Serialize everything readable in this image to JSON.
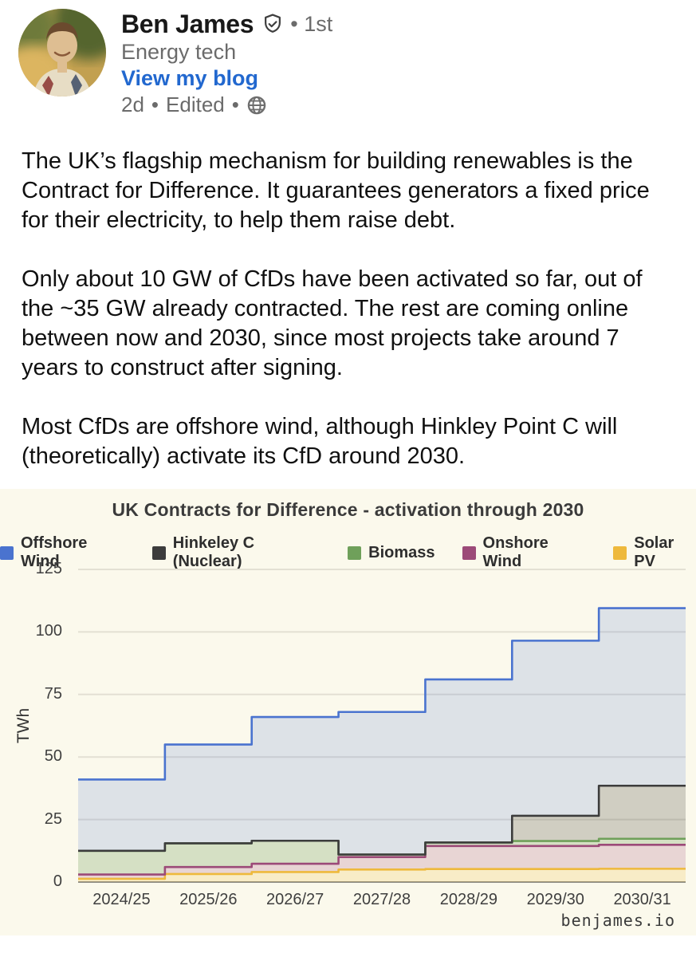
{
  "post": {
    "author": {
      "name": "Ben James",
      "badge_icon": "shield-check",
      "connection_degree": "1st",
      "headline": "Energy tech",
      "link_label": "View my blog",
      "time": "2d",
      "edited": "Edited",
      "separator": "•"
    },
    "paragraphs": [
      "The UK’s flagship mechanism for building renewables is the Contract for Difference. It guarantees generators a fixed price for their electricity, to help them raise debt.",
      "Only about 10 GW of CfDs have been activated so far, out of the ~35 GW already contracted. The rest are coming online between now and 2030, since most projects take around 7 years to construct after signing.",
      "Most CfDs are offshore wind, although Hinkley Point C will (theoretically) activate its CfD around 2030."
    ]
  },
  "chart_data": {
    "type": "area",
    "subtype": "stacked-step-area",
    "title": "UK Contracts for Difference - activation through 2030",
    "ylabel": "TWh",
    "ylim": [
      0,
      125
    ],
    "yticks": [
      0,
      25,
      50,
      75,
      100,
      125
    ],
    "grid": true,
    "legend_position": "top",
    "categories": [
      "2024/25",
      "2025/26",
      "2026/27",
      "2027/28",
      "2028/29",
      "2029/30",
      "2030/31"
    ],
    "series": [
      {
        "name": "Offshore Wind",
        "color": "#4a73cf",
        "fill": "rgba(77,114,205,0.17)",
        "values": [
          28.5,
          39.5,
          49.5,
          57.0,
          65.2,
          70.0,
          71.0
        ]
      },
      {
        "name": "Hinkeley C (Nuclear)",
        "color": "#3c3c3c",
        "fill": "rgba(70,70,62,0.24)",
        "values": [
          0,
          0,
          0,
          0,
          0,
          10.1,
          21.2
        ]
      },
      {
        "name": "Biomass",
        "color": "#6fa05a",
        "fill": "rgba(110,159,88,0.27)",
        "values": [
          9.5,
          9.5,
          9.2,
          1.0,
          1.4,
          2.0,
          2.4
        ]
      },
      {
        "name": "Onshore Wind",
        "color": "#9c4a78",
        "fill": "rgba(158,72,120,0.20)",
        "values": [
          1.7,
          2.8,
          3.3,
          5.0,
          9.2,
          9.2,
          9.6
        ]
      },
      {
        "name": "Solar PV",
        "color": "#eeb93c",
        "fill": "rgba(240,186,55,0.20)",
        "values": [
          1.3,
          3.2,
          4.0,
          5.0,
          5.2,
          5.2,
          5.3
        ]
      }
    ],
    "stack_order": [
      "Solar PV",
      "Onshore Wind",
      "Biomass",
      "Hinkeley C (Nuclear)",
      "Offshore Wind"
    ],
    "stacked_totals": [
      41,
      55,
      66,
      68,
      81,
      96.5,
      109.5
    ],
    "attribution": "benjames.io",
    "colors": {
      "card_background": "#fbf9ec",
      "gridline": "#e3e0d3",
      "zero_line": "#8e8e86"
    }
  }
}
